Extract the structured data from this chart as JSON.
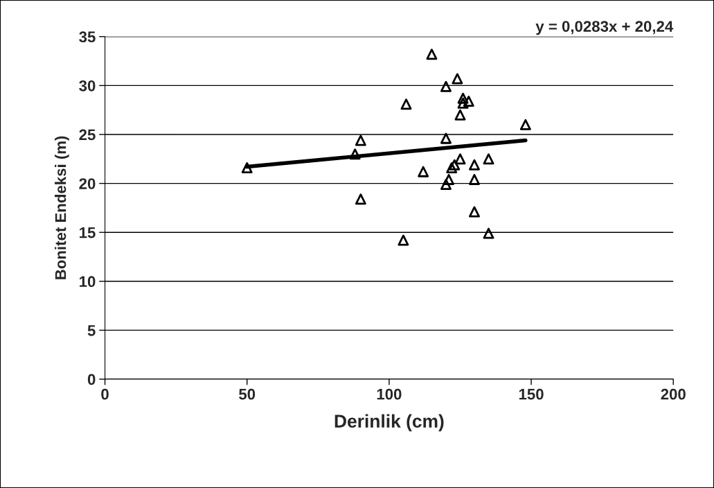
{
  "chart_data": {
    "type": "scatter",
    "xlabel": "Derinlik (cm)",
    "ylabel": "Bonitet Endeksi (m)",
    "annotations": [
      "y = 0,0283x + 20,24"
    ],
    "series": [
      {
        "color": "#000000",
        "marker": "triangle",
        "x": [
          50,
          88,
          90,
          90,
          105,
          106,
          112,
          115,
          120,
          124,
          120,
          120,
          121,
          122,
          123,
          125,
          125,
          126,
          126,
          128,
          130,
          130,
          130,
          135,
          135,
          148
        ],
        "values": [
          21.6,
          23.0,
          24.4,
          18.4,
          14.2,
          28.1,
          21.2,
          33.2,
          29.9,
          30.7,
          24.6,
          19.9,
          20.4,
          21.6,
          21.9,
          22.5,
          27.0,
          28.7,
          28.2,
          28.4,
          21.9,
          20.4,
          17.1,
          22.5,
          14.9,
          26.0
        ]
      },
      {
        "type": "line",
        "color": "#000000",
        "marker": "none",
        "line_style": "solid",
        "x": [
          50,
          148
        ],
        "values": [
          21.7,
          24.4
        ]
      }
    ],
    "xlim": [
      0,
      200
    ],
    "xticks": [
      0,
      50,
      100,
      150,
      200
    ],
    "ylim": [
      0,
      35
    ],
    "yticks": [
      0,
      5,
      10,
      15,
      20,
      25,
      30,
      35
    ],
    "grid": "y",
    "legend": false
  }
}
